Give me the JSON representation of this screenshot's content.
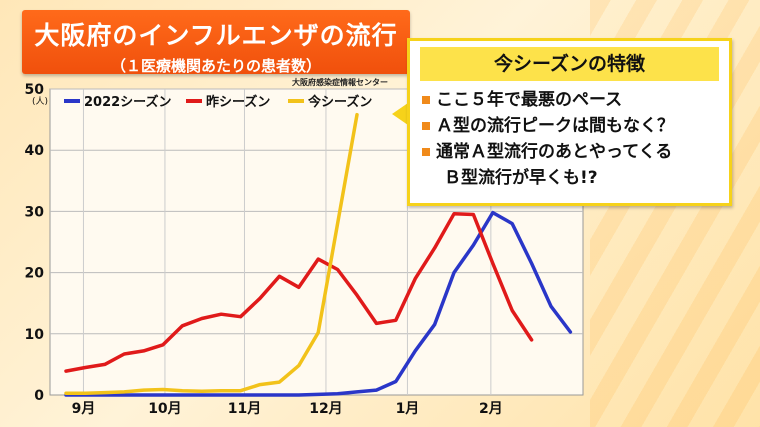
{
  "title": "大阪府のインフルエンザの流行",
  "subtitle": "（１医療機関あたりの患者数）",
  "source": "大阪府感染症情報センター",
  "feature_box": {
    "heading": "今シーズンの特徴",
    "items": [
      {
        "text": "ここ５年で最悪のペース"
      },
      {
        "text": "Ａ型の流行ピークは間もなく？"
      },
      {
        "text": "通常Ａ型流行のあとやってくる",
        "text2": "Ｂ型流行が早くも!?"
      }
    ]
  },
  "chart_data": {
    "type": "line",
    "ylabel": "(人)",
    "ylim": [
      0,
      50
    ],
    "yticks": [
      0,
      10,
      20,
      30,
      40,
      50
    ],
    "ytick_labels": [
      "0",
      "10",
      "20",
      "30",
      "40",
      "50"
    ],
    "xlabels": [
      "9月",
      "10月",
      "11月",
      "12月",
      "1月",
      "2月"
    ],
    "xlabel_positions": [
      0.9,
      5.1,
      9.2,
      13.4,
      17.6,
      21.9
    ],
    "x_count": 27,
    "legend_placement": "top",
    "grid": true,
    "series": [
      {
        "name": "2022シーズン",
        "color": "#2a36c8",
        "values": [
          0,
          0,
          0,
          0,
          0,
          0,
          0,
          0,
          0,
          0,
          0,
          0,
          0,
          0.1,
          0.2,
          0.5,
          0.8,
          2.2,
          7.2,
          11.5,
          20,
          24.5,
          29.8,
          28,
          21.5,
          14.5,
          10.3
        ]
      },
      {
        "name": "昨シーズン",
        "color": "#e01a1a",
        "values": [
          3.9,
          4.5,
          5,
          6.7,
          7.2,
          8.2,
          11.3,
          12.5,
          13.2,
          12.8,
          15.8,
          19.4,
          17.6,
          22.2,
          20.5,
          16.3,
          11.7,
          12.2,
          19,
          24,
          29.6,
          29.5,
          21.5,
          13.8,
          9
        ]
      },
      {
        "name": "今シーズン",
        "color": "#f2c21a",
        "values": [
          0.3,
          0.3,
          0.4,
          0.5,
          0.8,
          0.9,
          0.7,
          0.6,
          0.7,
          0.7,
          1.7,
          2.1,
          4.8,
          10.2,
          28,
          45.8
        ]
      }
    ]
  }
}
